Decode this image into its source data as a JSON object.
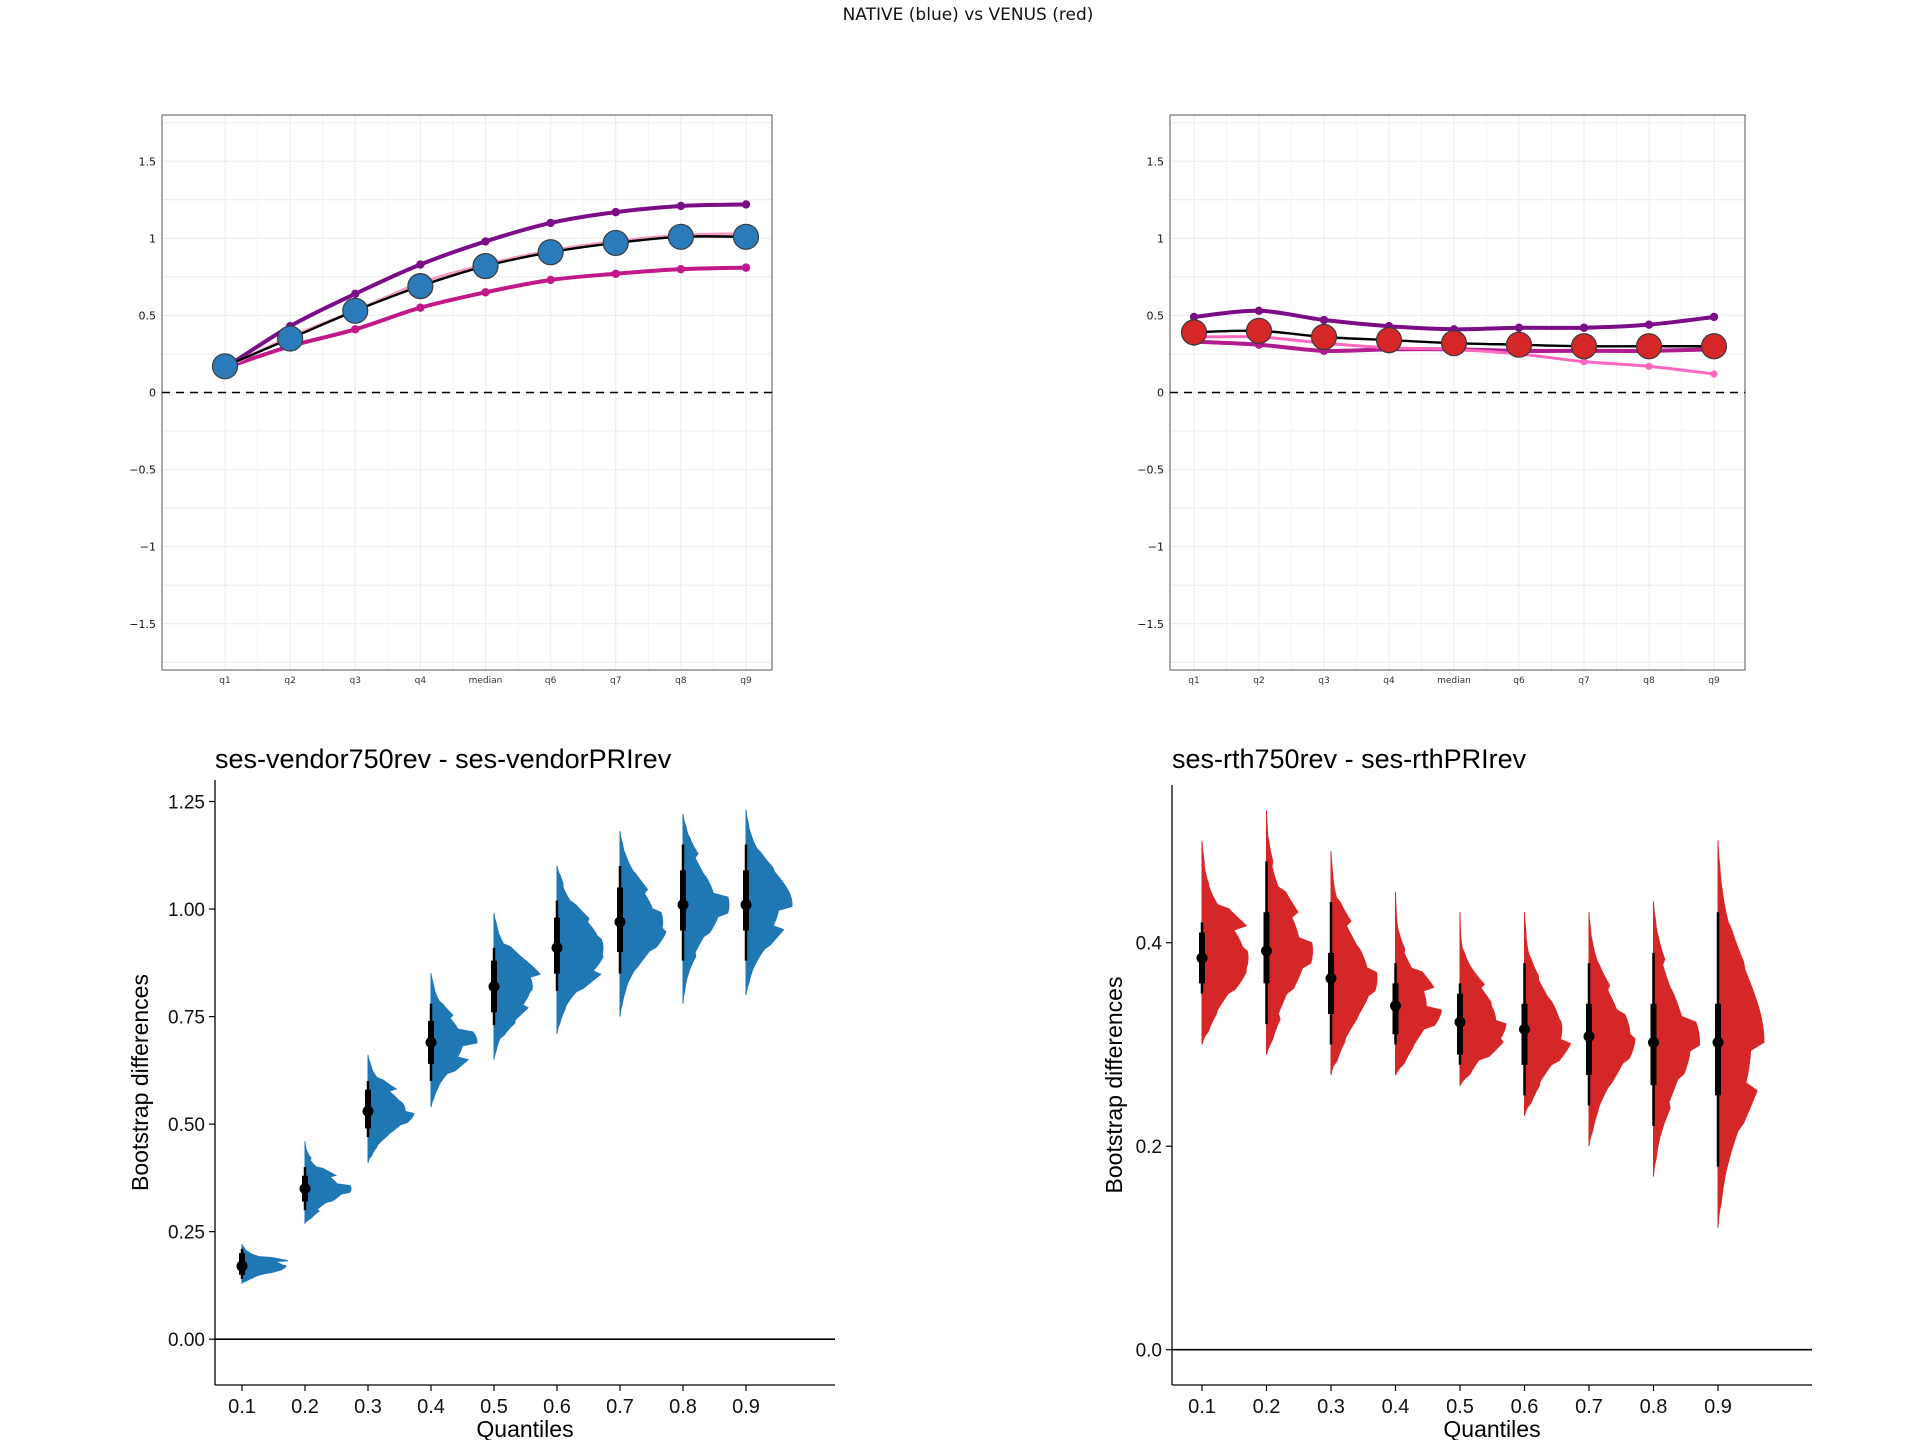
{
  "figure": {
    "suptitle": "NATIVE (blue) vs VENUS (red)"
  },
  "colors": {
    "native": "#2b7bba",
    "venus": "#d62728",
    "upper_line": "#7b0d87",
    "lower_line_blue": "#c3188a",
    "lower_line_red": "#ff66c0",
    "median_line": "#000000",
    "violin_blue": "#1f77b4",
    "violin_red": "#d62728"
  },
  "chart_data": [
    {
      "type": "line",
      "panel": "top-left",
      "categories": [
        "q1",
        "q2",
        "q3",
        "q4",
        "median",
        "q6",
        "q7",
        "q8",
        "q9"
      ],
      "ylim": [
        -1.8,
        1.8
      ],
      "yticks": [
        1.5,
        1,
        0.5,
        0,
        -0.5,
        -1,
        -1.5
      ],
      "ytick_labels": [
        "1.5",
        "1",
        "0.5",
        "0",
        "−0.5",
        "−1",
        "−1.5"
      ],
      "grid": true,
      "zero_line": "dashed",
      "series": [
        {
          "role": "upper",
          "values": [
            0.16,
            0.43,
            0.64,
            0.83,
            0.98,
            1.1,
            1.17,
            1.21,
            1.22
          ]
        },
        {
          "role": "lower_ci",
          "values": [
            0.16,
            0.3,
            0.41,
            0.55,
            0.65,
            0.73,
            0.77,
            0.8,
            0.81
          ]
        },
        {
          "role": "light_pink",
          "values": [
            0.16,
            0.36,
            0.53,
            0.71,
            0.83,
            0.92,
            0.98,
            1.02,
            1.03
          ]
        },
        {
          "role": "estimate",
          "values": [
            0.17,
            0.35,
            0.53,
            0.69,
            0.82,
            0.91,
            0.97,
            1.01,
            1.01
          ]
        }
      ]
    },
    {
      "type": "line",
      "panel": "top-right",
      "categories": [
        "q1",
        "q2",
        "q3",
        "q4",
        "median",
        "q6",
        "q7",
        "q8",
        "q9"
      ],
      "ylim": [
        -1.8,
        1.8
      ],
      "yticks": [
        1.5,
        1,
        0.5,
        0,
        -0.5,
        -1,
        -1.5
      ],
      "ytick_labels": [
        "1.5",
        "1",
        "0.5",
        "0",
        "−0.5",
        "−1",
        "−1.5"
      ],
      "grid": true,
      "zero_line": "dashed",
      "series": [
        {
          "role": "upper",
          "values": [
            0.49,
            0.53,
            0.47,
            0.43,
            0.41,
            0.42,
            0.42,
            0.44,
            0.49
          ]
        },
        {
          "role": "lower_ci",
          "values": [
            0.33,
            0.31,
            0.27,
            0.28,
            0.28,
            0.27,
            0.27,
            0.27,
            0.28
          ]
        },
        {
          "role": "light_pink",
          "values": [
            0.36,
            0.36,
            0.32,
            0.29,
            0.28,
            0.25,
            0.2,
            0.17,
            0.12
          ]
        },
        {
          "role": "estimate",
          "values": [
            0.39,
            0.4,
            0.36,
            0.34,
            0.32,
            0.31,
            0.3,
            0.3,
            0.3
          ]
        }
      ]
    },
    {
      "type": "violin",
      "panel": "bottom-left",
      "title": "ses-vendor750rev - ses-vendorPRIrev",
      "xlabel": "Quantiles",
      "ylabel": "Bootstrap differences",
      "categories": [
        "0.1",
        "0.2",
        "0.3",
        "0.4",
        "0.5",
        "0.6",
        "0.7",
        "0.8",
        "0.9"
      ],
      "ylim": [
        -0.06,
        1.3
      ],
      "yticks": [
        0.0,
        0.25,
        0.5,
        0.75,
        1.0,
        1.25
      ],
      "ytick_labels": [
        "0.00",
        "0.25",
        "0.50",
        "0.75",
        "1.00",
        "1.25"
      ],
      "estimates": [
        0.17,
        0.35,
        0.53,
        0.69,
        0.82,
        0.91,
        0.97,
        1.01,
        1.01
      ],
      "ci95": [
        [
          0.15,
          0.2
        ],
        [
          0.32,
          0.38
        ],
        [
          0.49,
          0.58
        ],
        [
          0.64,
          0.74
        ],
        [
          0.76,
          0.88
        ],
        [
          0.85,
          0.98
        ],
        [
          0.9,
          1.05
        ],
        [
          0.95,
          1.09
        ],
        [
          0.95,
          1.09
        ]
      ],
      "ci99": [
        [
          0.14,
          0.21
        ],
        [
          0.3,
          0.4
        ],
        [
          0.47,
          0.6
        ],
        [
          0.6,
          0.78
        ],
        [
          0.73,
          0.91
        ],
        [
          0.81,
          1.02
        ],
        [
          0.85,
          1.1
        ],
        [
          0.88,
          1.15
        ],
        [
          0.88,
          1.15
        ]
      ],
      "range": [
        [
          0.13,
          0.22
        ],
        [
          0.27,
          0.46
        ],
        [
          0.41,
          0.66
        ],
        [
          0.54,
          0.85
        ],
        [
          0.65,
          0.99
        ],
        [
          0.71,
          1.1
        ],
        [
          0.75,
          1.18
        ],
        [
          0.78,
          1.22
        ],
        [
          0.8,
          1.23
        ]
      ],
      "zero_line": "solid"
    },
    {
      "type": "violin",
      "panel": "bottom-right",
      "title": "ses-rth750rev - ses-rthPRIrev",
      "xlabel": "Quantiles",
      "ylabel": "Bootstrap differences",
      "categories": [
        "0.1",
        "0.2",
        "0.3",
        "0.4",
        "0.5",
        "0.6",
        "0.7",
        "0.8",
        "0.9"
      ],
      "ylim": [
        -0.015,
        0.555
      ],
      "yticks": [
        0.0,
        0.2,
        0.4
      ],
      "ytick_labels": [
        "0.0",
        "0.2",
        "0.4"
      ],
      "estimates": [
        0.385,
        0.392,
        0.365,
        0.338,
        0.322,
        0.315,
        0.308,
        0.302,
        0.302
      ],
      "ci95": [
        [
          0.36,
          0.41
        ],
        [
          0.36,
          0.43
        ],
        [
          0.33,
          0.39
        ],
        [
          0.31,
          0.36
        ],
        [
          0.29,
          0.35
        ],
        [
          0.28,
          0.34
        ],
        [
          0.27,
          0.34
        ],
        [
          0.26,
          0.34
        ],
        [
          0.25,
          0.34
        ]
      ],
      "ci99": [
        [
          0.35,
          0.42
        ],
        [
          0.32,
          0.48
        ],
        [
          0.3,
          0.44
        ],
        [
          0.3,
          0.38
        ],
        [
          0.28,
          0.36
        ],
        [
          0.25,
          0.38
        ],
        [
          0.24,
          0.38
        ],
        [
          0.22,
          0.39
        ],
        [
          0.18,
          0.43
        ]
      ],
      "range": [
        [
          0.3,
          0.5
        ],
        [
          0.29,
          0.53
        ],
        [
          0.27,
          0.49
        ],
        [
          0.27,
          0.45
        ],
        [
          0.26,
          0.43
        ],
        [
          0.23,
          0.43
        ],
        [
          0.2,
          0.43
        ],
        [
          0.17,
          0.44
        ],
        [
          0.12,
          0.5
        ]
      ],
      "zero_line": "solid"
    }
  ]
}
